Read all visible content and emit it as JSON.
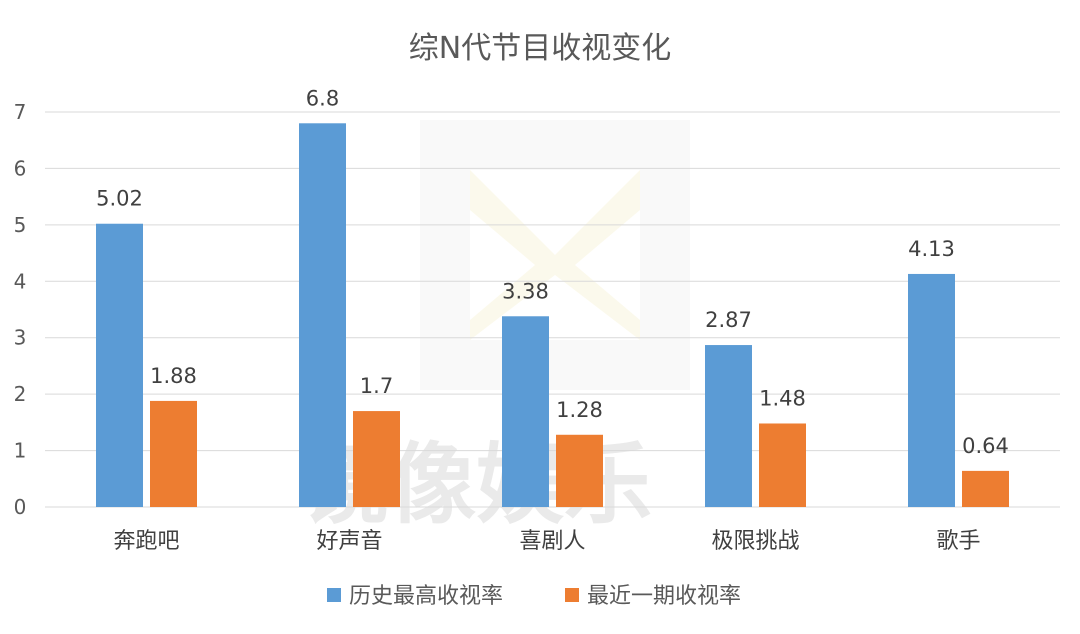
{
  "watermark_text": "镜像娱乐",
  "colors": {
    "series1": "#5b9bd5",
    "series2": "#ed7d31",
    "grid": "#d9d9d9",
    "text": "#595959"
  },
  "chart_data": {
    "type": "bar",
    "title": "综N代节目收视变化",
    "categories": [
      "奔跑吧",
      "好声音",
      "喜剧人",
      "极限挑战",
      "歌手"
    ],
    "series": [
      {
        "name": "历史最高收视率",
        "values": [
          5.02,
          6.8,
          3.38,
          2.87,
          4.13
        ]
      },
      {
        "name": "最近一期收视率",
        "values": [
          1.88,
          1.7,
          1.28,
          1.48,
          0.64
        ]
      }
    ],
    "y_ticks": [
      "0",
      "1",
      "2",
      "3",
      "4",
      "5",
      "6",
      "7"
    ],
    "ylim": [
      0,
      7
    ],
    "xlabel": "",
    "ylabel": "",
    "grid": true,
    "legend": "bottom"
  }
}
